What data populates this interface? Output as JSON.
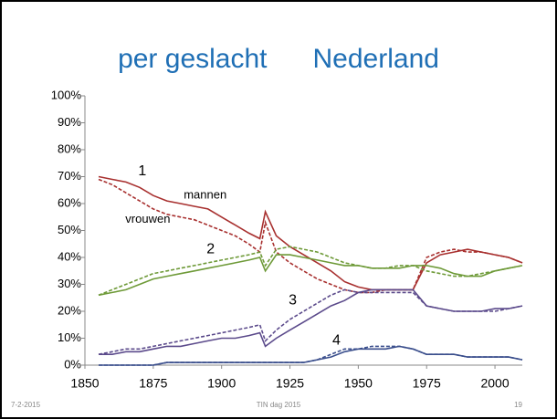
{
  "chart_data": {
    "type": "line",
    "title": "per geslacht      Nederland",
    "x": [
      1855,
      1860,
      1865,
      1870,
      1875,
      1880,
      1885,
      1890,
      1895,
      1900,
      1905,
      1910,
      1914,
      1916,
      1920,
      1925,
      1930,
      1935,
      1940,
      1945,
      1950,
      1955,
      1960,
      1965,
      1970,
      1975,
      1980,
      1985,
      1990,
      1995,
      2000,
      2005,
      2010
    ],
    "series": [
      {
        "color": "#A8302F",
        "dashed": false,
        "values": [
          70,
          69,
          68,
          66,
          63,
          61,
          60,
          59,
          58,
          55,
          52,
          49,
          47,
          57,
          48,
          44,
          41,
          38,
          35,
          31,
          29,
          28,
          28,
          28,
          28,
          38,
          41,
          42,
          43,
          42,
          41,
          40,
          38
        ]
      },
      {
        "color": "#A8302F",
        "dashed": true,
        "values": [
          69,
          67,
          64,
          61,
          58,
          56,
          55,
          54,
          52,
          50,
          48,
          45,
          42,
          53,
          42,
          38,
          35,
          32,
          30,
          28,
          27,
          27,
          28,
          28,
          28,
          40,
          42,
          43,
          42,
          42,
          41,
          40,
          38
        ]
      },
      {
        "color": "#6E9A38",
        "dashed": false,
        "values": [
          26,
          27,
          28,
          30,
          32,
          33,
          34,
          35,
          36,
          37,
          38,
          39,
          40,
          35,
          41,
          41,
          40,
          39,
          38,
          37,
          37,
          36,
          36,
          36,
          37,
          37,
          36,
          34,
          33,
          33,
          35,
          36,
          37
        ]
      },
      {
        "color": "#6E9A38",
        "dashed": true,
        "values": [
          26,
          28,
          30,
          32,
          34,
          35,
          36,
          37,
          38,
          39,
          40,
          41,
          42,
          37,
          43,
          44,
          43,
          42,
          40,
          38,
          37,
          36,
          36,
          37,
          37,
          35,
          34,
          33,
          33,
          34,
          35,
          36,
          37
        ]
      },
      {
        "color": "#5B4A8B",
        "dashed": false,
        "values": [
          4,
          4,
          5,
          5,
          6,
          7,
          7,
          8,
          9,
          10,
          10,
          11,
          12,
          7,
          10,
          13,
          16,
          19,
          22,
          24,
          27,
          28,
          28,
          28,
          28,
          22,
          21,
          20,
          20,
          20,
          21,
          21,
          22
        ]
      },
      {
        "color": "#5B4A8B",
        "dashed": true,
        "values": [
          4,
          5,
          6,
          6,
          7,
          8,
          9,
          10,
          11,
          12,
          13,
          14,
          15,
          9,
          13,
          17,
          20,
          23,
          26,
          28,
          27,
          27,
          27,
          27,
          27,
          22,
          21,
          20,
          20,
          20,
          20,
          21,
          22
        ]
      },
      {
        "color": "#3A4E8C",
        "dashed": false,
        "values": [
          0,
          0,
          0,
          0,
          0,
          1,
          1,
          1,
          1,
          1,
          1,
          1,
          1,
          1,
          1,
          1,
          1,
          2,
          3,
          5,
          6,
          6,
          6,
          7,
          6,
          4,
          4,
          4,
          3,
          3,
          3,
          3,
          2
        ]
      },
      {
        "color": "#3A4E8C",
        "dashed": true,
        "values": [
          0,
          0,
          0,
          0,
          0,
          1,
          1,
          1,
          1,
          1,
          1,
          1,
          1,
          1,
          1,
          1,
          1,
          2,
          4,
          6,
          6,
          7,
          7,
          7,
          6,
          4,
          4,
          4,
          3,
          3,
          3,
          3,
          2
        ]
      }
    ],
    "xlim": [
      1850,
      2010
    ],
    "xticks": [
      1850,
      1875,
      1900,
      1925,
      1950,
      1975,
      2000
    ],
    "ylim": [
      0,
      100
    ],
    "yticks": [
      {
        "value": 0,
        "label": "0%"
      },
      {
        "value": 10,
        "label": "10%"
      },
      {
        "value": 20,
        "label": "20%"
      },
      {
        "value": 30,
        "label": "30%"
      },
      {
        "value": 40,
        "label": "40%"
      },
      {
        "value": 50,
        "label": "50%"
      },
      {
        "value": 60,
        "label": "60%"
      },
      {
        "value": 70,
        "label": "70%"
      },
      {
        "value": 80,
        "label": "80%"
      },
      {
        "value": 90,
        "label": "90%"
      },
      {
        "value": 100,
        "label": "100%"
      }
    ],
    "annotations": [
      {
        "text": "1",
        "x": 1871,
        "y": 72
      },
      {
        "text": "mannen",
        "x": 1894,
        "y": 63
      },
      {
        "text": "vrouwen",
        "x": 1873,
        "y": 54
      },
      {
        "text": "2",
        "x": 1896,
        "y": 43
      },
      {
        "text": "3",
        "x": 1926,
        "y": 24
      },
      {
        "text": "4",
        "x": 1942,
        "y": 9
      }
    ]
  },
  "footer": {
    "date": "7-2-2015",
    "event": "TIN dag 2015",
    "page": "19"
  }
}
